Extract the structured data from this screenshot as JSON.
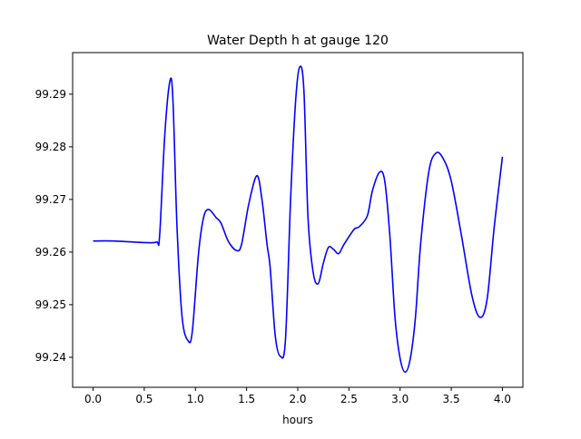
{
  "chart_data": {
    "type": "line",
    "title": "Water Depth h at gauge 120",
    "xlabel": "hours",
    "ylabel": "",
    "xlim": [
      -0.2,
      4.2
    ],
    "ylim": [
      99.2343,
      99.2979
    ],
    "xticks": [
      0.0,
      0.5,
      1.0,
      1.5,
      2.0,
      2.5,
      3.0,
      3.5,
      4.0
    ],
    "xtick_labels": [
      "0.0",
      "0.5",
      "1.0",
      "1.5",
      "2.0",
      "2.5",
      "3.0",
      "3.5",
      "4.0"
    ],
    "yticks": [
      99.24,
      99.25,
      99.26,
      99.27,
      99.28,
      99.29
    ],
    "ytick_labels": [
      "99.24",
      "99.25",
      "99.26",
      "99.27",
      "99.28",
      "99.29"
    ],
    "grid": false,
    "series": [
      {
        "name": "h",
        "color": "#0000ff",
        "x": [
          0,
          0.2,
          0.5,
          0.62,
          0.65,
          0.7,
          0.75,
          0.78,
          0.82,
          0.87,
          0.93,
          0.97,
          1.03,
          1.08,
          1.13,
          1.2,
          1.25,
          1.32,
          1.4,
          1.45,
          1.52,
          1.6,
          1.65,
          1.7,
          1.73,
          1.78,
          1.83,
          1.88,
          1.93,
          1.98,
          2.02,
          2.06,
          2.1,
          2.15,
          2.2,
          2.25,
          2.3,
          2.35,
          2.4,
          2.45,
          2.55,
          2.6,
          2.68,
          2.73,
          2.8,
          2.85,
          2.9,
          2.95,
          3.0,
          3.05,
          3.1,
          3.15,
          3.2,
          3.28,
          3.35,
          3.42,
          3.5,
          3.6,
          3.7,
          3.78,
          3.85,
          3.92,
          4.0
        ],
        "y": [
          99.2621,
          99.2621,
          99.2618,
          99.2619,
          99.2631,
          99.2821,
          99.2924,
          99.289,
          99.2648,
          99.2476,
          99.2431,
          99.245,
          99.2597,
          99.2666,
          99.2681,
          99.2666,
          99.2655,
          99.2621,
          99.2603,
          99.2614,
          99.269,
          99.2745,
          99.27,
          99.2614,
          99.2571,
          99.2441,
          99.2402,
          99.2434,
          99.27,
          99.289,
          99.2952,
          99.2907,
          99.2666,
          99.2562,
          99.254,
          99.2579,
          99.2609,
          99.2605,
          99.2597,
          99.2614,
          99.2643,
          99.2648,
          99.2669,
          99.2717,
          99.2752,
          99.2735,
          99.2631,
          99.2476,
          99.2398,
          99.2372,
          99.2398,
          99.2476,
          99.2614,
          99.2752,
          99.2788,
          99.2778,
          99.2735,
          99.2631,
          99.2519,
          99.2476,
          99.251,
          99.2648,
          99.2781
        ]
      }
    ]
  }
}
